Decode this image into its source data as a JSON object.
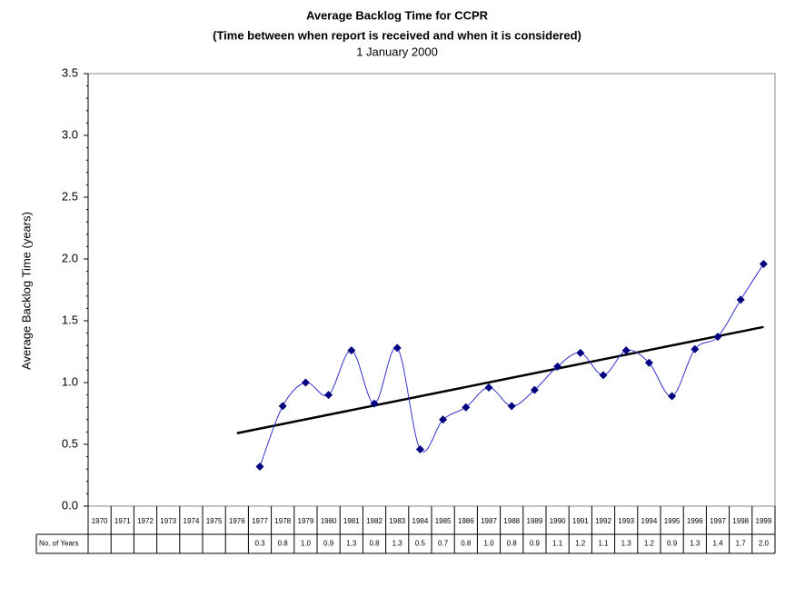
{
  "chart_data": {
    "type": "line",
    "title": "Average Backlog Time for CCPR",
    "subtitle": "(Time between when report is received and when it is considered)",
    "date": "1 January 2000",
    "y_label": "Average Backlog Time (years)",
    "table_row_label": "No. of Years",
    "categories": [
      "1970",
      "1971",
      "1972",
      "1973",
      "1974",
      "1975",
      "1976",
      "1977",
      "1978",
      "1979",
      "1980",
      "1981",
      "1982",
      "1983",
      "1984",
      "1985",
      "1986",
      "1987",
      "1988",
      "1989",
      "1990",
      "1991",
      "1992",
      "1993",
      "1994",
      "1995",
      "1996",
      "1997",
      "1998",
      "1999"
    ],
    "series": [
      {
        "name": "No. of Years",
        "color": "#3333cc",
        "marker_color": "#000080",
        "values": [
          null,
          null,
          null,
          null,
          null,
          null,
          null,
          0.32,
          0.81,
          1.0,
          0.9,
          1.26,
          0.83,
          1.28,
          0.46,
          0.7,
          0.8,
          0.96,
          0.81,
          0.94,
          1.13,
          1.24,
          1.06,
          1.26,
          1.16,
          0.89,
          1.27,
          1.37,
          1.67,
          1.96
        ],
        "value_labels": [
          null,
          null,
          null,
          null,
          null,
          null,
          null,
          "0.3",
          "0.8",
          "1.0",
          "0.9",
          "1.3",
          "0.8",
          "1.3",
          "0.5",
          "0.7",
          "0.8",
          "1.0",
          "0.8",
          "0.9",
          "1.1",
          "1.2",
          "1.1",
          "1.3",
          "1.2",
          "0.9",
          "1.3",
          "1.4",
          "1.7",
          "2.0"
        ]
      }
    ],
    "trendline": {
      "start": "1976",
      "end": "1999",
      "values": [
        0.59,
        1.45
      ],
      "color": "#000000"
    },
    "ylim": [
      0,
      3.5
    ],
    "yticks": [
      {
        "value": 0,
        "label": "0.0"
      },
      0.5,
      {
        "value": 1,
        "label": "1.0"
      },
      1.5,
      {
        "value": 2,
        "label": "2.0"
      },
      2.5,
      {
        "value": 3,
        "label": "3.0"
      },
      3.5
    ]
  }
}
